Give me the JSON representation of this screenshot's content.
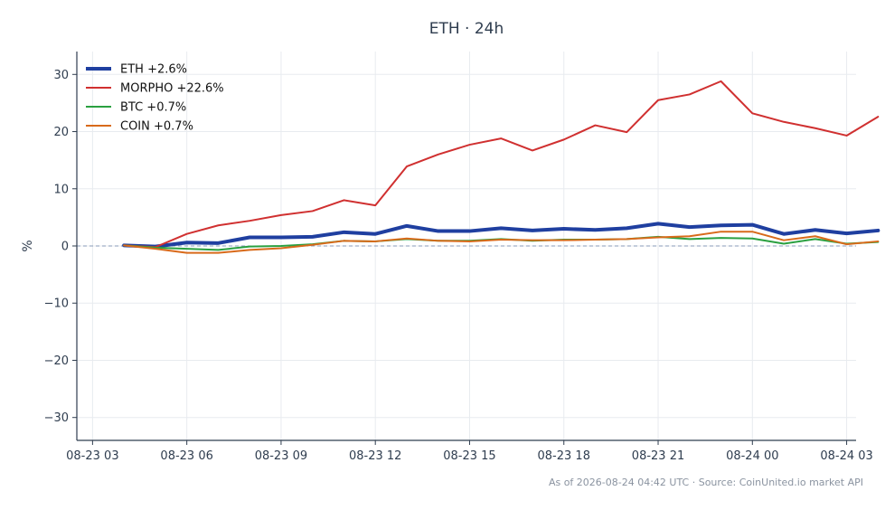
{
  "chart_data": {
    "type": "line",
    "title": "ETH · 24h",
    "xlabel": "",
    "ylabel": "%",
    "ylim": [
      -34,
      34
    ],
    "yticks": [
      30,
      20,
      10,
      0,
      -10,
      -20,
      -30
    ],
    "ytick_labels": [
      "30",
      "20",
      "10",
      "0",
      "−10",
      "−20",
      "−30"
    ],
    "xlim": [
      2.5,
      27.3
    ],
    "xticks": [
      3,
      6,
      9,
      12,
      15,
      18,
      21,
      24,
      27
    ],
    "xtick_labels": [
      "08-23 03",
      "08-23 06",
      "08-23 09",
      "08-23 12",
      "08-23 15",
      "08-23 18",
      "08-23 21",
      "08-24 00",
      "08-24 03"
    ],
    "x": [
      4,
      5,
      6,
      7,
      8,
      9,
      10,
      11,
      12,
      13,
      14,
      15,
      16,
      17,
      18,
      19,
      20,
      21,
      22,
      23,
      24,
      25,
      26,
      27,
      28
    ],
    "grid": true,
    "zero_line": true,
    "legend_position": "top-left",
    "series": [
      {
        "name": "ETH +2.6%",
        "color": "#1f3fa0",
        "width": 4,
        "values": [
          0.1,
          -0.1,
          0.6,
          0.5,
          1.5,
          1.5,
          1.6,
          2.4,
          2.1,
          3.5,
          2.6,
          2.6,
          3.1,
          2.7,
          3.0,
          2.8,
          3.1,
          3.9,
          3.3,
          3.6,
          3.7,
          2.1,
          2.8,
          2.2,
          2.7
        ]
      },
      {
        "name": "MORPHO +22.6%",
        "color": "#d03030",
        "width": 2,
        "values": [
          0.1,
          -0.2,
          2.1,
          3.6,
          4.4,
          5.4,
          6.1,
          8.0,
          7.1,
          13.9,
          16.0,
          17.7,
          18.8,
          16.7,
          18.6,
          21.1,
          19.9,
          25.5,
          26.5,
          28.8,
          23.2,
          21.7,
          20.6,
          19.3,
          22.6
        ]
      },
      {
        "name": "BTC +0.7%",
        "color": "#2aa040",
        "width": 2,
        "values": [
          0.1,
          -0.3,
          -0.5,
          -0.7,
          -0.1,
          0.0,
          0.3,
          0.9,
          0.8,
          1.2,
          0.9,
          0.9,
          1.2,
          0.9,
          1.1,
          1.1,
          1.2,
          1.6,
          1.2,
          1.4,
          1.3,
          0.4,
          1.2,
          0.4,
          0.7
        ]
      },
      {
        "name": "COIN +0.7%",
        "color": "#d86a1a",
        "width": 2,
        "values": [
          0.1,
          -0.5,
          -1.2,
          -1.2,
          -0.7,
          -0.4,
          0.2,
          0.9,
          0.8,
          1.3,
          0.9,
          0.8,
          1.1,
          1.0,
          1.0,
          1.1,
          1.2,
          1.5,
          1.7,
          2.5,
          2.5,
          1.0,
          1.7,
          0.3,
          0.8
        ]
      }
    ],
    "colors": {
      "axis": "#2f3d4f",
      "grid": "#e8ebef",
      "zero_line": "#8a9bb8"
    }
  },
  "footnote": "As of 2026-08-24 04:42 UTC · Source: CoinUnited.io market API"
}
